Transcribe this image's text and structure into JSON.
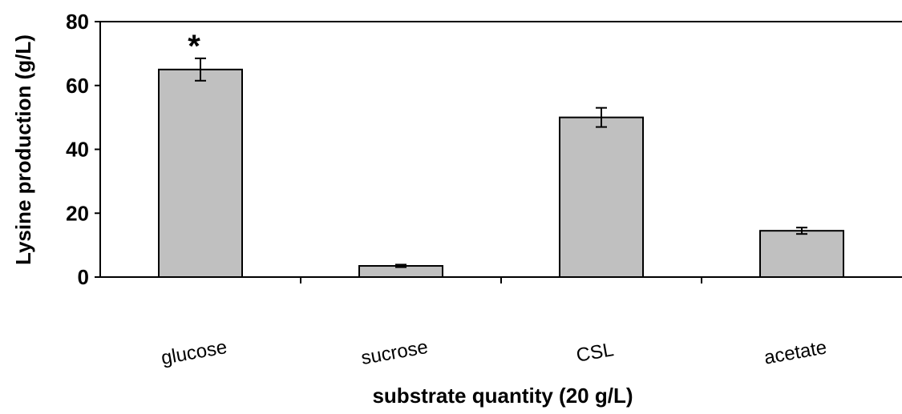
{
  "chart_data": {
    "type": "bar",
    "categories": [
      "glucose",
      "sucrose",
      "CSL",
      "acetate"
    ],
    "values": [
      65,
      3.5,
      50,
      14.5
    ],
    "error": [
      3.5,
      0.4,
      3,
      1
    ],
    "annotations": [
      {
        "category": "glucose",
        "text": "*"
      }
    ],
    "xlabel": "substrate quantity (20 g/L)",
    "ylabel": "Lysine production (g/L)",
    "ylim": [
      0,
      80
    ],
    "yticks": [
      0,
      20,
      40,
      60,
      80
    ],
    "bar_color": "#c0c0c0",
    "grid": false,
    "legend": "none"
  }
}
